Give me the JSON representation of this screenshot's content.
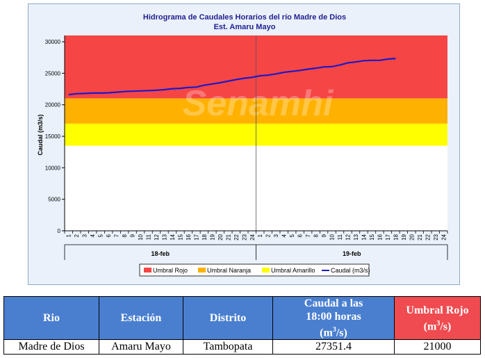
{
  "chart_data": {
    "type": "line",
    "title": "Hidrograma de Caudales Horarios del río Madre de Dios",
    "subtitle": "Est. Amaru Mayo",
    "ylabel": "Caudal  (m3/s)",
    "ylim": [
      0,
      31000
    ],
    "yticks": [
      0,
      5000,
      10000,
      15000,
      20000,
      25000,
      30000
    ],
    "x_hour_ticks": [
      "1",
      "2",
      "3",
      "4",
      "5",
      "6",
      "7",
      "8",
      "9",
      "10",
      "11",
      "12",
      "13",
      "14",
      "15",
      "16",
      "17",
      "18",
      "19",
      "20",
      "21",
      "22",
      "23",
      "24"
    ],
    "day_labels": [
      "18-feb",
      "19-feb"
    ],
    "bands": [
      {
        "name": "Umbral Rojo",
        "from": 21000,
        "to": 31000,
        "color": "#f64545"
      },
      {
        "name": "Umbral Naranja",
        "from": 17000,
        "to": 21000,
        "color": "#ffb100"
      },
      {
        "name": "Umbral Amarillo",
        "from": 13500,
        "to": 17000,
        "color": "#ffff00"
      }
    ],
    "series": [
      {
        "name": "Caudal (m3/s)",
        "color": "#1a1ac8",
        "x": [
          1,
          2,
          3,
          4,
          5,
          6,
          7,
          8,
          9,
          10,
          11,
          12,
          13,
          14,
          15,
          16,
          17,
          18,
          19,
          20,
          21,
          22,
          23,
          24,
          25,
          26,
          27,
          28,
          29,
          30,
          31,
          32,
          33,
          34,
          35,
          36,
          37,
          38,
          39,
          40,
          41,
          42
        ],
        "values": [
          21600,
          21750,
          21800,
          21850,
          21850,
          21900,
          22000,
          22100,
          22150,
          22200,
          22250,
          22300,
          22400,
          22550,
          22600,
          22750,
          22800,
          23100,
          23300,
          23500,
          23750,
          24000,
          24200,
          24350,
          24600,
          24700,
          24900,
          25150,
          25300,
          25450,
          25650,
          25800,
          26000,
          26050,
          26300,
          26650,
          26800,
          27000,
          27050,
          27050,
          27250,
          27351.4
        ]
      }
    ],
    "legend": [
      "Umbral Rojo",
      "Umbral Naranja",
      "Umbral Amarillo",
      "Caudal (m3/s)"
    ],
    "legend_position": "bottom",
    "watermark": "Senamhi"
  },
  "table": {
    "headers": {
      "rio": "Rio",
      "estacion": "Estación",
      "distrito": "Distrito",
      "caudal_line1": "Caudal a las",
      "caudal_line2": "18:00 horas",
      "caudal_unit": "(m",
      "caudal_unit_sup": "3",
      "caudal_unit_end": "/s)",
      "umbral_line1": "Umbral Rojo",
      "umbral_unit": "(m",
      "umbral_unit_sup": "3",
      "umbral_unit_end": "/s)"
    },
    "row": {
      "rio": "Madre de Dios",
      "estacion": "Amaru Mayo",
      "distrito": "Tambopata",
      "caudal": "27351.4",
      "umbral": "21000"
    }
  }
}
